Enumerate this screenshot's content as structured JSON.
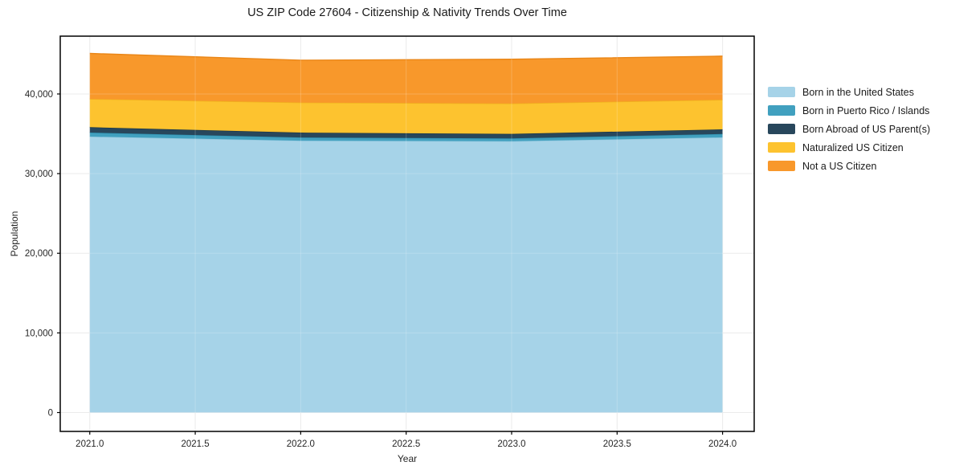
{
  "chart_data": {
    "type": "area",
    "stacked": true,
    "title": "US ZIP Code 27604 - Citizenship & Nativity Trends Over Time",
    "xlabel": "Year",
    "ylabel": "Population",
    "x": [
      2021,
      2022,
      2023,
      2024
    ],
    "series": [
      {
        "name": "Born in the United States",
        "color": "#a6d3e8",
        "edge": "#8fc6dd",
        "values": [
          34650,
          34140,
          34070,
          34550
        ]
      },
      {
        "name": "Born in Puerto Rico / Islands",
        "color": "#41a0bf",
        "edge": "#2e8fae",
        "values": [
          500,
          400,
          350,
          430
        ]
      },
      {
        "name": "Born Abroad of US Parent(s)",
        "color": "#28475c",
        "edge": "#1b3646",
        "values": [
          680,
          610,
          570,
          580
        ]
      },
      {
        "name": "Naturalized US Citizen",
        "color": "#fdc32f",
        "edge": "#f0b31d",
        "values": [
          3540,
          3770,
          3810,
          3710
        ]
      },
      {
        "name": "Not a US Citizen",
        "color": "#f8982b",
        "edge": "#ea8617",
        "values": [
          5720,
          5320,
          5560,
          5480
        ]
      }
    ],
    "xticks": [
      {
        "v": 2021.0,
        "label": "2021.0"
      },
      {
        "v": 2021.5,
        "label": "2021.5"
      },
      {
        "v": 2022.0,
        "label": "2022.0"
      },
      {
        "v": 2022.5,
        "label": "2022.5"
      },
      {
        "v": 2023.0,
        "label": "2023.0"
      },
      {
        "v": 2023.5,
        "label": "2023.5"
      },
      {
        "v": 2024.0,
        "label": "2024.0"
      }
    ],
    "yticks": [
      {
        "v": 0,
        "label": "0"
      },
      {
        "v": 10000,
        "label": "10,000"
      },
      {
        "v": 20000,
        "label": "20,000"
      },
      {
        "v": 30000,
        "label": "30,000"
      },
      {
        "v": 40000,
        "label": "40,000"
      }
    ],
    "xlim": [
      2020.86,
      2024.15
    ],
    "ylim": [
      -2370,
      47260
    ],
    "grid": true,
    "legend_position": "right"
  },
  "colors": {
    "background": "#ffffff",
    "grid": "#e7e7e7",
    "grid_overlay": "rgba(255,255,255,0.20)",
    "spine": "#000000",
    "tick": "#000000",
    "tick_label": "#262626",
    "title": "#1a1a1a"
  }
}
